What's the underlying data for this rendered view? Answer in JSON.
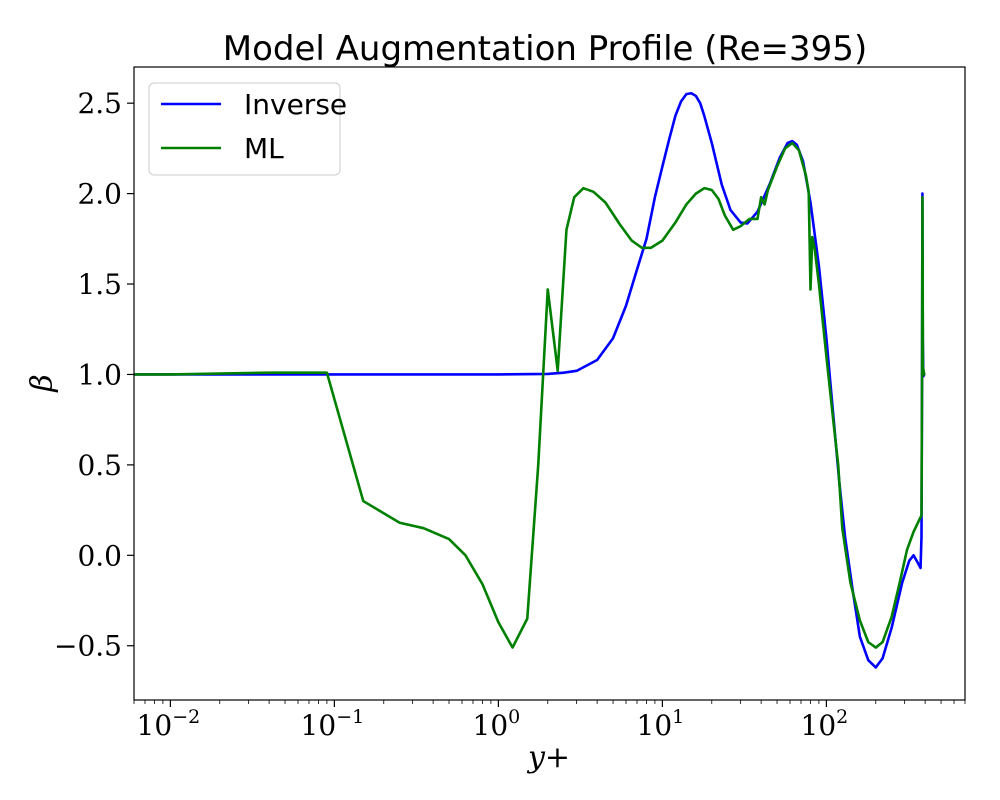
{
  "chart_data": {
    "type": "line",
    "title": "Model Augmentation Profile (Re=395)",
    "xlabel": "y+",
    "ylabel": "β",
    "xscale": "log",
    "xlim": [
      0.006,
      700
    ],
    "ylim": [
      -0.8,
      2.7
    ],
    "xticks": [
      {
        "value": 0.01,
        "base": "10",
        "exp": "−2"
      },
      {
        "value": 0.1,
        "base": "10",
        "exp": "−1"
      },
      {
        "value": 1,
        "base": "10",
        "exp": "0"
      },
      {
        "value": 10,
        "base": "10",
        "exp": "1"
      },
      {
        "value": 100,
        "base": "10",
        "exp": "2"
      }
    ],
    "yticks": [
      {
        "value": -0.5,
        "label": "−0.5"
      },
      {
        "value": 0.0,
        "label": "0.0"
      },
      {
        "value": 0.5,
        "label": "0.5"
      },
      {
        "value": 1.0,
        "label": "1.0"
      },
      {
        "value": 1.5,
        "label": "1.5"
      },
      {
        "value": 2.0,
        "label": "2.0"
      },
      {
        "value": 2.5,
        "label": "2.5"
      }
    ],
    "legend_position": "top-left",
    "grid": false,
    "series": [
      {
        "name": "Inverse",
        "color": "#0000ff",
        "points": [
          [
            0.006,
            1.0
          ],
          [
            0.1,
            1.0
          ],
          [
            1.0,
            1.0
          ],
          [
            2.0,
            1.003
          ],
          [
            2.5,
            1.01
          ],
          [
            3.0,
            1.02
          ],
          [
            4.0,
            1.08
          ],
          [
            5.0,
            1.2
          ],
          [
            6.0,
            1.38
          ],
          [
            7.0,
            1.58
          ],
          [
            8.0,
            1.75
          ],
          [
            9.0,
            1.98
          ],
          [
            10.0,
            2.15
          ],
          [
            11.0,
            2.3
          ],
          [
            12.0,
            2.43
          ],
          [
            13.0,
            2.51
          ],
          [
            14.0,
            2.55
          ],
          [
            15.0,
            2.555
          ],
          [
            16.0,
            2.54
          ],
          [
            17.0,
            2.5
          ],
          [
            18.0,
            2.43
          ],
          [
            20.0,
            2.28
          ],
          [
            23.0,
            2.05
          ],
          [
            26.0,
            1.91
          ],
          [
            30.0,
            1.84
          ],
          [
            33.0,
            1.835
          ],
          [
            38.0,
            1.9
          ],
          [
            45.0,
            2.05
          ],
          [
            52.0,
            2.2
          ],
          [
            58.0,
            2.28
          ],
          [
            62.0,
            2.29
          ],
          [
            66.0,
            2.27
          ],
          [
            72.0,
            2.18
          ],
          [
            80.0,
            1.95
          ],
          [
            90.0,
            1.6
          ],
          [
            100.0,
            1.2
          ],
          [
            110.0,
            0.78
          ],
          [
            120.0,
            0.4
          ],
          [
            130.0,
            0.1
          ],
          [
            145.0,
            -0.2
          ],
          [
            160.0,
            -0.45
          ],
          [
            180.0,
            -0.58
          ],
          [
            200.0,
            -0.62
          ],
          [
            220.0,
            -0.57
          ],
          [
            250.0,
            -0.4
          ],
          [
            290.0,
            -0.15
          ],
          [
            320.0,
            -0.03
          ],
          [
            340.0,
            0.0
          ],
          [
            360.0,
            -0.04
          ],
          [
            375.0,
            -0.07
          ],
          [
            380.0,
            0.1
          ],
          [
            383.0,
            1.0
          ],
          [
            385.0,
            2.0
          ],
          [
            387.0,
            1.2
          ],
          [
            390.0,
            0.99
          ],
          [
            395.0,
            1.0
          ]
        ]
      },
      {
        "name": "ML",
        "color": "#008000",
        "points": [
          [
            0.006,
            1.0
          ],
          [
            0.01,
            1.0
          ],
          [
            0.04,
            1.01
          ],
          [
            0.09,
            1.01
          ],
          [
            0.15,
            0.3
          ],
          [
            0.25,
            0.18
          ],
          [
            0.35,
            0.15
          ],
          [
            0.5,
            0.09
          ],
          [
            0.63,
            0.0
          ],
          [
            0.8,
            -0.16
          ],
          [
            1.0,
            -0.37
          ],
          [
            1.22,
            -0.51
          ],
          [
            1.5,
            -0.35
          ],
          [
            1.75,
            0.5
          ],
          [
            2.0,
            1.47
          ],
          [
            2.3,
            1.02
          ],
          [
            2.6,
            1.8
          ],
          [
            2.9,
            1.98
          ],
          [
            3.3,
            2.03
          ],
          [
            3.8,
            2.01
          ],
          [
            4.5,
            1.95
          ],
          [
            5.5,
            1.83
          ],
          [
            6.5,
            1.74
          ],
          [
            7.5,
            1.7
          ],
          [
            8.5,
            1.7
          ],
          [
            10.0,
            1.74
          ],
          [
            12.0,
            1.84
          ],
          [
            14.0,
            1.94
          ],
          [
            16.0,
            2.0
          ],
          [
            18.0,
            2.03
          ],
          [
            20.0,
            2.02
          ],
          [
            22.0,
            1.97
          ],
          [
            24.0,
            1.88
          ],
          [
            27.0,
            1.8
          ],
          [
            30.0,
            1.82
          ],
          [
            34.0,
            1.86
          ],
          [
            38.0,
            1.86
          ],
          [
            40.0,
            1.98
          ],
          [
            42.0,
            1.94
          ],
          [
            44.0,
            2.02
          ],
          [
            50.0,
            2.15
          ],
          [
            56.0,
            2.25
          ],
          [
            62.0,
            2.28
          ],
          [
            68.0,
            2.24
          ],
          [
            75.0,
            2.1
          ],
          [
            78.0,
            2.01
          ],
          [
            80.0,
            1.47
          ],
          [
            82.0,
            1.76
          ],
          [
            85.0,
            1.69
          ],
          [
            90.0,
            1.5
          ],
          [
            100.0,
            1.1
          ],
          [
            110.0,
            0.75
          ],
          [
            118.0,
            0.5
          ],
          [
            125.0,
            0.15
          ],
          [
            140.0,
            -0.15
          ],
          [
            160.0,
            -0.36
          ],
          [
            180.0,
            -0.48
          ],
          [
            200.0,
            -0.51
          ],
          [
            220.0,
            -0.48
          ],
          [
            250.0,
            -0.34
          ],
          [
            280.0,
            -0.15
          ],
          [
            310.0,
            0.03
          ],
          [
            340.0,
            0.13
          ],
          [
            370.0,
            0.2
          ],
          [
            380.0,
            0.22
          ],
          [
            383.0,
            1.0
          ],
          [
            385.0,
            1.98
          ],
          [
            388.0,
            1.0
          ],
          [
            390.0,
            1.03
          ],
          [
            395.0,
            1.0
          ]
        ]
      }
    ]
  }
}
